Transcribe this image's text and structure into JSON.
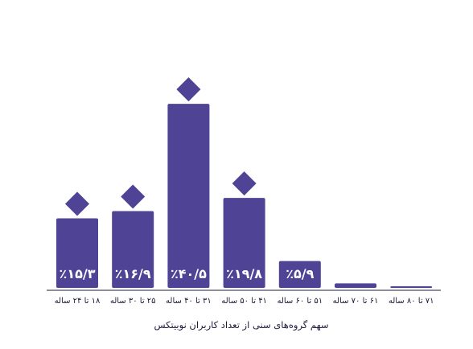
{
  "chart_data": {
    "type": "bar",
    "title": "",
    "xlabel": "سهم گروه‌های سنی از تعداد کاربران نوبیتکس",
    "ylabel": "",
    "categories": [
      "۱۸ تا ۲۴ ساله",
      "۲۵ تا ۳۰ ساله",
      "۳۱ تا ۴۰ ساله",
      "۴۱ تا ۵۰ ساله",
      "۵۱ تا ۶۰ ساله",
      "۶۱ تا ۷۰ ساله",
      "۷۱ تا ۸۰ ساله"
    ],
    "values": [
      15.3,
      16.9,
      40.5,
      19.8,
      5.9,
      1.0,
      0.2
    ],
    "data_labels": [
      "٪۱۵/۳",
      "٪۱۶/۹",
      "٪۴۰/۵",
      "٪۱۹/۸",
      "٪۵/۹",
      "",
      ""
    ],
    "highlight_markers": [
      true,
      true,
      true,
      true,
      false,
      false,
      false
    ],
    "ylim": [
      0,
      45
    ],
    "grid": false,
    "legend": "none",
    "colors": {
      "bar": "#4f4395",
      "marker": "#4f4395",
      "axis": "#1b1b3a",
      "label_text": "#ffffff",
      "tick_text": "#1b1b3a"
    }
  }
}
